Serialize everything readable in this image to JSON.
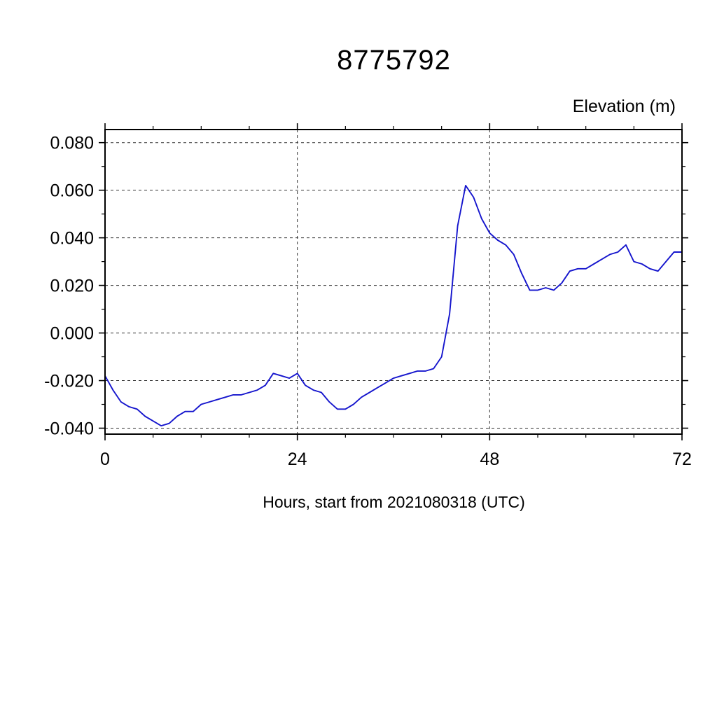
{
  "page": {
    "background": "#ffffff"
  },
  "chart_data": {
    "type": "line",
    "title": "8775792",
    "ylabel": "Elevation (m)",
    "xlabel": "Hours, start from 2021080318 (UTC)",
    "line_color": "#1515cd",
    "grid": true,
    "grid_style": "dashed",
    "legend_position": "none",
    "xlim": [
      0,
      72
    ],
    "ylim": [
      -0.0425,
      0.0855
    ],
    "xticks": [
      0,
      24,
      48,
      72
    ],
    "xtick_labels": [
      "0",
      "24",
      "48",
      "72"
    ],
    "x_minor_step": 6,
    "yticks": [
      0.08,
      0.06,
      0.04,
      0.02,
      0.0,
      -0.02,
      -0.04
    ],
    "ytick_labels": [
      "0.080",
      "0.060",
      "0.040",
      "0.020",
      "0.000",
      "-0.020",
      "-0.040"
    ],
    "y_minor_step": 0.01,
    "x": [
      0,
      1,
      2,
      3,
      4,
      5,
      6,
      7,
      8,
      9,
      10,
      11,
      12,
      13,
      14,
      15,
      16,
      17,
      18,
      19,
      20,
      21,
      22,
      23,
      24,
      25,
      26,
      27,
      28,
      29,
      30,
      31,
      32,
      33,
      34,
      35,
      36,
      37,
      38,
      39,
      40,
      41,
      42,
      43,
      44,
      45,
      46,
      47,
      48,
      49,
      50,
      51,
      52,
      53,
      54,
      55,
      56,
      57,
      58,
      59,
      60,
      61,
      62,
      63,
      64,
      65,
      66,
      67,
      68,
      69,
      70,
      71,
      72
    ],
    "y": [
      -0.018,
      -0.024,
      -0.029,
      -0.031,
      -0.032,
      -0.035,
      -0.037,
      -0.039,
      -0.038,
      -0.035,
      -0.033,
      -0.033,
      -0.03,
      -0.029,
      -0.028,
      -0.027,
      -0.026,
      -0.026,
      -0.025,
      -0.024,
      -0.022,
      -0.017,
      -0.018,
      -0.019,
      -0.017,
      -0.022,
      -0.024,
      -0.025,
      -0.029,
      -0.032,
      -0.032,
      -0.03,
      -0.027,
      -0.025,
      -0.023,
      -0.021,
      -0.019,
      -0.018,
      -0.017,
      -0.016,
      -0.016,
      -0.015,
      -0.01,
      0.008,
      0.045,
      0.062,
      0.057,
      0.048,
      0.042,
      0.039,
      0.037,
      0.033,
      0.025,
      0.018,
      0.018,
      0.019,
      0.018,
      0.021,
      0.026,
      0.027,
      0.027,
      0.029,
      0.031,
      0.033,
      0.034,
      0.037,
      0.03,
      0.029,
      0.027,
      0.026,
      0.03,
      0.034,
      0.034
    ]
  }
}
